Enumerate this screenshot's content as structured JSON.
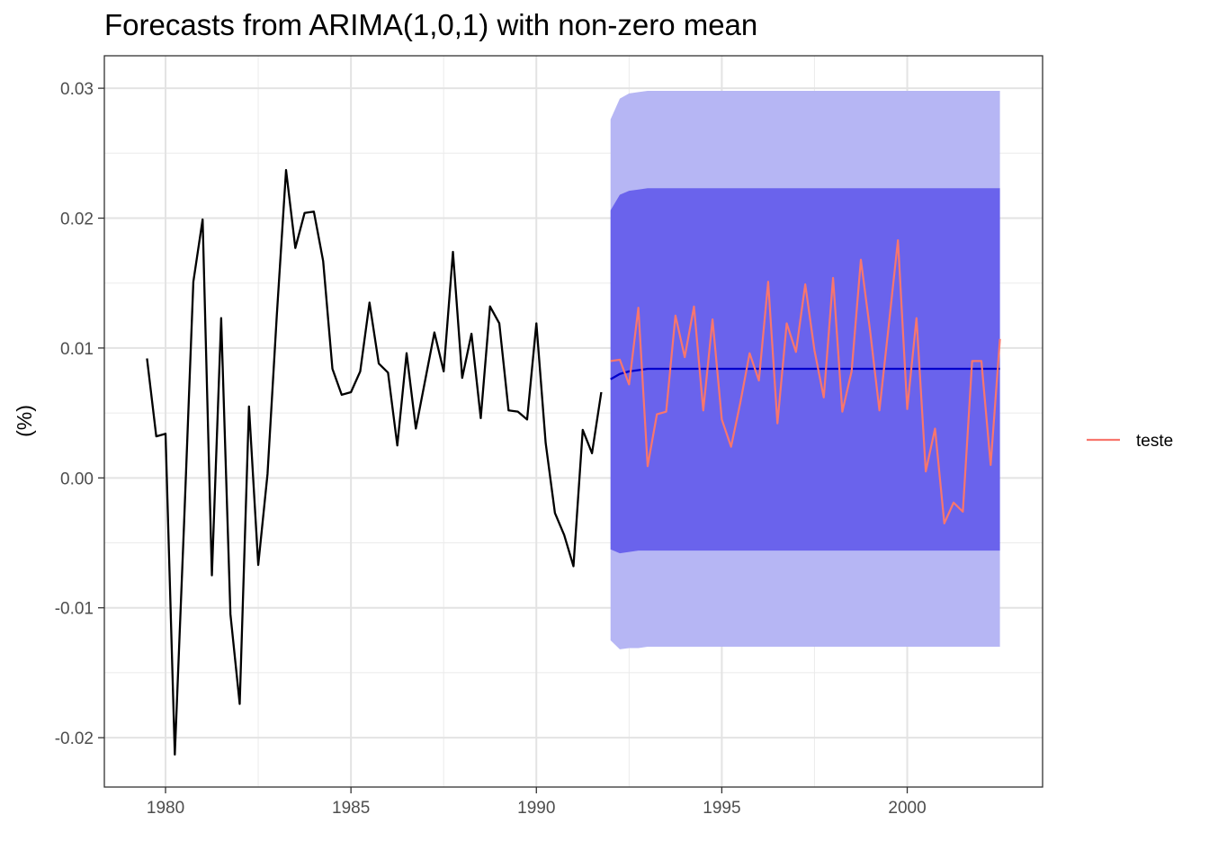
{
  "chart_data": {
    "type": "line",
    "title": "Forecasts from ARIMA(1,0,1) with non-zero mean",
    "xlabel": "",
    "ylabel": "(%)",
    "xlim": [
      1978.35,
      2003.65
    ],
    "ylim": [
      -0.0238,
      0.0325
    ],
    "x_ticks": [
      1980,
      1985,
      1990,
      1995,
      2000
    ],
    "x_tick_labels": [
      "1980",
      "1985",
      "1990",
      "1995",
      "2000"
    ],
    "y_ticks": [
      -0.02,
      -0.01,
      0.0,
      0.01,
      0.02,
      0.03
    ],
    "y_tick_labels": [
      "-0.02",
      "-0.01",
      "0.00",
      "0.01",
      "0.02",
      "0.03"
    ],
    "grid": true,
    "legend": {
      "position": "right",
      "entries": [
        {
          "label": "teste",
          "color": "#F8766D"
        }
      ]
    },
    "colors": {
      "observed": "#000000",
      "forecast_mean": "#0000CC",
      "band_80": "#6A63EC",
      "band_95": "#B6B6F4",
      "teste": "#F8766D"
    },
    "observed": {
      "start": 1979.5,
      "step": 0.25,
      "values": [
        0.0092,
        0.0032,
        0.0034,
        -0.0213,
        -0.0035,
        0.0151,
        0.0199,
        -0.0075,
        0.0123,
        -0.0105,
        -0.0174,
        0.0055,
        -0.0067,
        0.0003,
        0.0125,
        0.0237,
        0.0177,
        0.0204,
        0.0205,
        0.0167,
        0.0084,
        0.0064,
        0.0066,
        0.0082,
        0.0135,
        0.0088,
        0.0081,
        0.0025,
        0.0096,
        0.0038,
        0.0075,
        0.0112,
        0.0082,
        0.0174,
        0.0077,
        0.0111,
        0.0046,
        0.0132,
        0.0119,
        0.0052,
        0.0051,
        0.0045,
        0.0119,
        0.0027,
        -0.0027,
        -0.0044,
        -0.0068,
        0.0037,
        0.0019,
        0.0066
      ]
    },
    "forecast": {
      "start": 1992.0,
      "step": 0.25,
      "mean": [
        0.0076,
        0.008,
        0.0082,
        0.0083,
        0.0084,
        0.0084,
        0.0084,
        0.0084,
        0.0084,
        0.0084,
        0.0084,
        0.0084,
        0.0084,
        0.0084,
        0.0084,
        0.0084,
        0.0084,
        0.0084,
        0.0084,
        0.0084,
        0.0084,
        0.0084,
        0.0084,
        0.0084,
        0.0084,
        0.0084,
        0.0084,
        0.0084,
        0.0084,
        0.0084,
        0.0084,
        0.0084,
        0.0084,
        0.0084,
        0.0084,
        0.0084,
        0.0084,
        0.0084,
        0.0084,
        0.0084,
        0.0084,
        0.0084,
        0.0084
      ],
      "lo80": [
        -0.0055,
        -0.0058,
        -0.0057,
        -0.0056,
        -0.0056,
        -0.0056,
        -0.0056,
        -0.0056,
        -0.0056,
        -0.0056,
        -0.0056,
        -0.0056,
        -0.0056,
        -0.0056,
        -0.0056,
        -0.0056,
        -0.0056,
        -0.0056,
        -0.0056,
        -0.0056,
        -0.0056,
        -0.0056,
        -0.0056,
        -0.0056,
        -0.0056,
        -0.0056,
        -0.0056,
        -0.0056,
        -0.0056,
        -0.0056,
        -0.0056,
        -0.0056,
        -0.0056,
        -0.0056,
        -0.0056,
        -0.0056,
        -0.0056,
        -0.0056,
        -0.0056,
        -0.0056,
        -0.0056,
        -0.0056,
        -0.0056
      ],
      "hi80": [
        0.0206,
        0.0218,
        0.0221,
        0.0222,
        0.0223,
        0.0223,
        0.0223,
        0.0223,
        0.0223,
        0.0223,
        0.0223,
        0.0223,
        0.0223,
        0.0223,
        0.0223,
        0.0223,
        0.0223,
        0.0223,
        0.0223,
        0.0223,
        0.0223,
        0.0223,
        0.0223,
        0.0223,
        0.0223,
        0.0223,
        0.0223,
        0.0223,
        0.0223,
        0.0223,
        0.0223,
        0.0223,
        0.0223,
        0.0223,
        0.0223,
        0.0223,
        0.0223,
        0.0223,
        0.0223,
        0.0223,
        0.0223,
        0.0223,
        0.0223
      ],
      "lo95": [
        -0.0125,
        -0.0132,
        -0.0131,
        -0.0131,
        -0.013,
        -0.013,
        -0.013,
        -0.013,
        -0.013,
        -0.013,
        -0.013,
        -0.013,
        -0.013,
        -0.013,
        -0.013,
        -0.013,
        -0.013,
        -0.013,
        -0.013,
        -0.013,
        -0.013,
        -0.013,
        -0.013,
        -0.013,
        -0.013,
        -0.013,
        -0.013,
        -0.013,
        -0.013,
        -0.013,
        -0.013,
        -0.013,
        -0.013,
        -0.013,
        -0.013,
        -0.013,
        -0.013,
        -0.013,
        -0.013,
        -0.013,
        -0.013,
        -0.013,
        -0.013
      ],
      "hi95": [
        0.0276,
        0.0292,
        0.0296,
        0.0297,
        0.0298,
        0.0298,
        0.0298,
        0.0298,
        0.0298,
        0.0298,
        0.0298,
        0.0298,
        0.0298,
        0.0298,
        0.0298,
        0.0298,
        0.0298,
        0.0298,
        0.0298,
        0.0298,
        0.0298,
        0.0298,
        0.0298,
        0.0298,
        0.0298,
        0.0298,
        0.0298,
        0.0298,
        0.0298,
        0.0298,
        0.0298,
        0.0298,
        0.0298,
        0.0298,
        0.0298,
        0.0298,
        0.0298,
        0.0298,
        0.0298,
        0.0298,
        0.0298,
        0.0298,
        0.0298
      ]
    },
    "series": [
      {
        "name": "teste",
        "start": 1992.0,
        "step": 0.25,
        "values": [
          0.009,
          0.0091,
          0.0072,
          0.0131,
          0.0009,
          0.0049,
          0.0051,
          0.0125,
          0.0093,
          0.0132,
          0.0052,
          0.0122,
          0.0045,
          0.0024,
          0.0058,
          0.0096,
          0.0075,
          0.0151,
          0.0042,
          0.0119,
          0.0097,
          0.0149,
          0.0098,
          0.0062,
          0.0154,
          0.0051,
          0.0082,
          0.0168,
          0.0113,
          0.0052,
          0.0117,
          0.0183,
          0.0053,
          0.0123,
          0.0005,
          0.0038,
          -0.0035,
          -0.0019,
          -0.0026,
          0.009,
          0.009,
          0.001,
          0.0107
        ]
      }
    ]
  }
}
